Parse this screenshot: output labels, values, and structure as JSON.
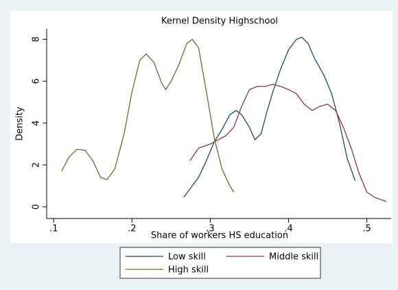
{
  "chart_data": {
    "type": "line",
    "title": "Kernel Density Highschool",
    "xlabel": "Share of workers HS education",
    "ylabel": "Density",
    "xlim": [
      0.091,
      0.531
    ],
    "ylim": [
      -0.56,
      8.5
    ],
    "xticks": [
      {
        "value": 0.1,
        "label": ".1"
      },
      {
        "value": 0.2,
        "label": ".2"
      },
      {
        "value": 0.3,
        "label": ".3"
      },
      {
        "value": 0.4,
        "label": ".4"
      },
      {
        "value": 0.5,
        "label": ".5"
      }
    ],
    "yticks": [
      0,
      2,
      4,
      6,
      8
    ],
    "series": [
      {
        "name": "Low skill",
        "color": "#1a476f",
        "x": [
          0.266,
          0.285,
          0.295,
          0.305,
          0.315,
          0.325,
          0.333,
          0.34,
          0.35,
          0.357,
          0.365,
          0.372,
          0.38,
          0.39,
          0.4,
          0.41,
          0.417,
          0.425,
          0.433,
          0.445,
          0.455,
          0.465,
          0.475,
          0.485
        ],
        "values": [
          0.45,
          1.4,
          2.2,
          3.1,
          3.7,
          4.4,
          4.6,
          4.4,
          3.8,
          3.2,
          3.5,
          4.5,
          5.5,
          6.6,
          7.5,
          8.0,
          8.1,
          7.8,
          7.1,
          6.3,
          5.4,
          4.0,
          2.3,
          1.25
        ]
      },
      {
        "name": "Middle skill",
        "color": "#90353b",
        "x": [
          0.274,
          0.285,
          0.3,
          0.31,
          0.32,
          0.33,
          0.34,
          0.35,
          0.36,
          0.37,
          0.38,
          0.39,
          0.4,
          0.41,
          0.42,
          0.43,
          0.44,
          0.45,
          0.46,
          0.47,
          0.48,
          0.49,
          0.5,
          0.51,
          0.525
        ],
        "values": [
          2.2,
          2.8,
          3.0,
          3.2,
          3.4,
          3.8,
          4.8,
          5.6,
          5.75,
          5.75,
          5.85,
          5.75,
          5.6,
          5.4,
          4.9,
          4.6,
          4.8,
          4.9,
          4.6,
          3.8,
          2.8,
          1.6,
          0.7,
          0.45,
          0.25
        ]
      },
      {
        "name": "High skill",
        "color": "#55752f",
        "x": [
          0.11,
          0.12,
          0.13,
          0.14,
          0.15,
          0.16,
          0.168,
          0.178,
          0.19,
          0.2,
          0.21,
          0.218,
          0.228,
          0.238,
          0.243,
          0.25,
          0.26,
          0.27,
          0.277,
          0.285,
          0.295,
          0.305,
          0.315,
          0.325,
          0.33
        ],
        "values": [
          1.7,
          2.4,
          2.75,
          2.7,
          2.2,
          1.4,
          1.3,
          1.8,
          3.5,
          5.5,
          7.0,
          7.3,
          6.9,
          5.9,
          5.6,
          6.0,
          6.8,
          7.8,
          8.0,
          7.6,
          5.5,
          3.3,
          1.8,
          1.0,
          0.7
        ]
      }
    ]
  }
}
